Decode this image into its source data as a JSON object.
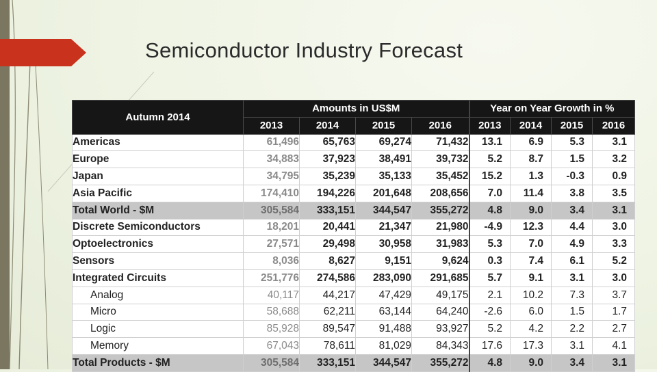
{
  "slide": {
    "title": "Semiconductor Industry Forecast"
  },
  "theme": {
    "accent": "#c9331d",
    "header_bg": "#161616",
    "corner_text": "#f0a21a",
    "total_row_bg": "#c6c6c6"
  },
  "chart_data": {
    "type": "table",
    "corner_label": "Autumn 2014",
    "group_headers": [
      "Amounts in US$M",
      "Year on Year Growth in %"
    ],
    "years": [
      "2013",
      "2014",
      "2015",
      "2016"
    ],
    "rows": [
      {
        "label": "Americas",
        "indent": false,
        "total": false,
        "amounts": [
          "61,496",
          "65,763",
          "69,274",
          "71,432"
        ],
        "growth": [
          "13.1",
          "6.9",
          "5.3",
          "3.1"
        ]
      },
      {
        "label": "Europe",
        "indent": false,
        "total": false,
        "amounts": [
          "34,883",
          "37,923",
          "38,491",
          "39,732"
        ],
        "growth": [
          "5.2",
          "8.7",
          "1.5",
          "3.2"
        ]
      },
      {
        "label": "Japan",
        "indent": false,
        "total": false,
        "amounts": [
          "34,795",
          "35,239",
          "35,133",
          "35,452"
        ],
        "growth": [
          "15.2",
          "1.3",
          "-0.3",
          "0.9"
        ]
      },
      {
        "label": "Asia Pacific",
        "indent": false,
        "total": false,
        "amounts": [
          "174,410",
          "194,226",
          "201,648",
          "208,656"
        ],
        "growth": [
          "7.0",
          "11.4",
          "3.8",
          "3.5"
        ]
      },
      {
        "label": "Total World - $M",
        "indent": false,
        "total": true,
        "amounts": [
          "305,584",
          "333,151",
          "344,547",
          "355,272"
        ],
        "growth": [
          "4.8",
          "9.0",
          "3.4",
          "3.1"
        ]
      },
      {
        "label": "Discrete Semiconductors",
        "indent": false,
        "total": false,
        "amounts": [
          "18,201",
          "20,441",
          "21,347",
          "21,980"
        ],
        "growth": [
          "-4.9",
          "12.3",
          "4.4",
          "3.0"
        ]
      },
      {
        "label": "Optoelectronics",
        "indent": false,
        "total": false,
        "amounts": [
          "27,571",
          "29,498",
          "30,958",
          "31,983"
        ],
        "growth": [
          "5.3",
          "7.0",
          "4.9",
          "3.3"
        ]
      },
      {
        "label": "Sensors",
        "indent": false,
        "total": false,
        "amounts": [
          "8,036",
          "8,627",
          "9,151",
          "9,624"
        ],
        "growth": [
          "0.3",
          "7.4",
          "6.1",
          "5.2"
        ]
      },
      {
        "label": "Integrated Circuits",
        "indent": false,
        "total": false,
        "amounts": [
          "251,776",
          "274,586",
          "283,090",
          "291,685"
        ],
        "growth": [
          "5.7",
          "9.1",
          "3.1",
          "3.0"
        ]
      },
      {
        "label": "Analog",
        "indent": true,
        "total": false,
        "amounts": [
          "40,117",
          "44,217",
          "47,429",
          "49,175"
        ],
        "growth": [
          "2.1",
          "10.2",
          "7.3",
          "3.7"
        ]
      },
      {
        "label": "Micro",
        "indent": true,
        "total": false,
        "amounts": [
          "58,688",
          "62,211",
          "63,144",
          "64,240"
        ],
        "growth": [
          "-2.6",
          "6.0",
          "1.5",
          "1.7"
        ]
      },
      {
        "label": "Logic",
        "indent": true,
        "total": false,
        "amounts": [
          "85,928",
          "89,547",
          "91,488",
          "93,927"
        ],
        "growth": [
          "5.2",
          "4.2",
          "2.2",
          "2.7"
        ]
      },
      {
        "label": "Memory",
        "indent": true,
        "total": false,
        "amounts": [
          "67,043",
          "78,611",
          "81,029",
          "84,343"
        ],
        "growth": [
          "17.6",
          "17.3",
          "3.1",
          "4.1"
        ]
      },
      {
        "label": "Total Products - $M",
        "indent": false,
        "total": true,
        "amounts": [
          "305,584",
          "333,151",
          "344,547",
          "355,272"
        ],
        "growth": [
          "4.8",
          "9.0",
          "3.4",
          "3.1"
        ]
      }
    ]
  }
}
